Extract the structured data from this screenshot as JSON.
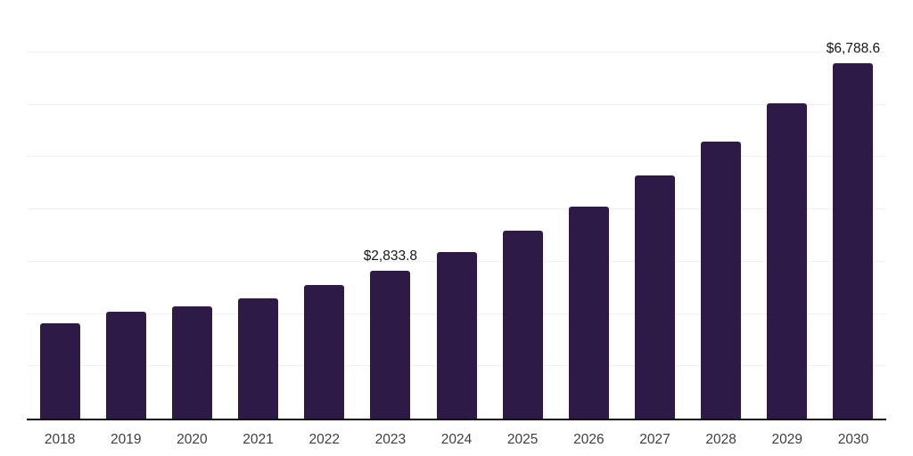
{
  "chart_data": {
    "type": "bar",
    "title": "",
    "xlabel": "",
    "ylabel": "",
    "categories": [
      "2018",
      "2019",
      "2020",
      "2021",
      "2022",
      "2023",
      "2024",
      "2025",
      "2026",
      "2027",
      "2028",
      "2029",
      "2030"
    ],
    "values": [
      1830,
      2040,
      2140,
      2300,
      2555,
      2833.8,
      3190,
      3590,
      4055,
      4650,
      5290,
      6020,
      6788.6
    ],
    "data_labels": [
      null,
      null,
      null,
      null,
      null,
      "$2,833.8",
      null,
      null,
      null,
      null,
      null,
      null,
      "$6,788.6"
    ],
    "ylim": [
      0,
      8000
    ],
    "gridline_values": [
      1000,
      2000,
      3000,
      4000,
      5000,
      6000,
      7000,
      8000
    ],
    "grid": "horizontal-only",
    "legend": "none",
    "axis_tick_labels_y": "hidden"
  },
  "colors": {
    "bar": "#2e1a46",
    "axis_line": "#101010",
    "gridline": "#f1f1f3",
    "tick_label": "#3e3e3e",
    "data_label": "#161616",
    "background": "#ffffff"
  }
}
